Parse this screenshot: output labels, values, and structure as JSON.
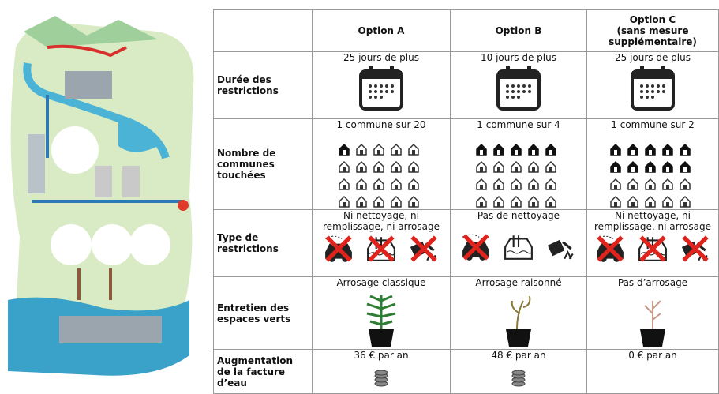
{
  "table": {
    "columns": [
      "Option A",
      "Option B",
      "Option C\n(sans mesure\nsupplémentaire)"
    ],
    "rows": [
      {
        "label": "Durée des\nrestrictions",
        "cells": [
          "25 jours de plus",
          "10 jours de plus",
          "25 jours de plus"
        ]
      },
      {
        "label": "Nombre de\ncommunes\ntouchées",
        "cells": [
          "1 commune sur 20",
          "1 commune sur 4",
          "1 commune sur 2"
        ]
      },
      {
        "label": "Type de\nrestrictions",
        "cells": [
          "Ni nettoyage, ni\nremplissage, ni arrosage",
          "Pas de nettoyage",
          "Ni nettoyage, ni\nremplissage, ni arrosage"
        ]
      },
      {
        "label": "Entretien des\nespaces verts",
        "cells": [
          "Arrosage classique",
          "Arrosage raisonné",
          "Pas d’arrosage"
        ]
      },
      {
        "label": "Augmentation\nde la facture\nd’eau",
        "cells": [
          "36 € par an",
          "48 € par an",
          "0 € par an"
        ]
      }
    ]
  }
}
